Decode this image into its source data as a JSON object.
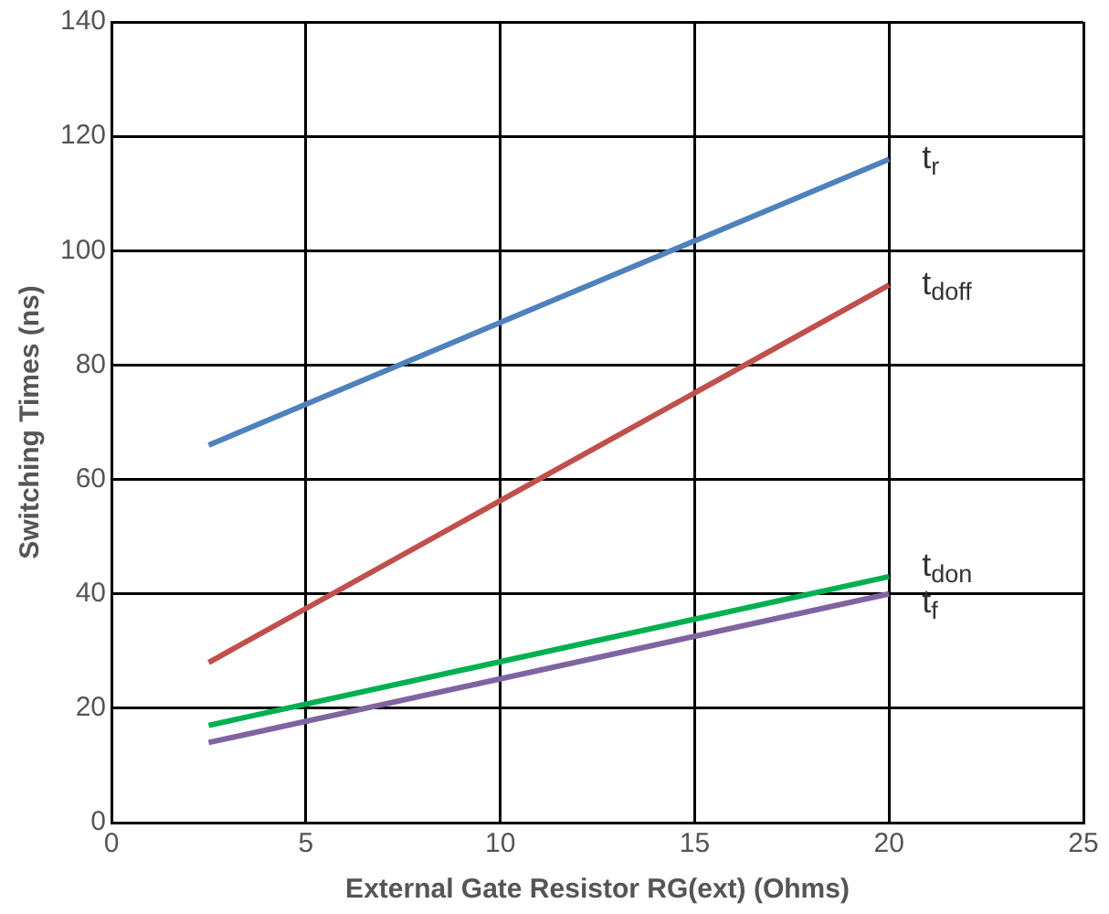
{
  "chart_data": {
    "type": "line",
    "xlabel": "External Gate Resistor RG(ext) (Ohms)",
    "ylabel": "Switching Times (ns)",
    "x": [
      2.5,
      20
    ],
    "series": [
      {
        "name": "t$_{r}$",
        "color": "#4f81bd",
        "values": [
          66,
          116
        ]
      },
      {
        "name": "t$_{doff}$",
        "color": "#c0504d",
        "values": [
          28,
          94
        ]
      },
      {
        "name": "t$_{don}$",
        "color": "#00b050",
        "values": [
          17,
          43
        ]
      },
      {
        "name": "t$_{f}$",
        "color": "#8064a2",
        "values": [
          14,
          40
        ]
      }
    ],
    "xlim": [
      0,
      25
    ],
    "xticks": [
      0,
      5,
      10,
      15,
      20,
      25
    ],
    "ylim": [
      0,
      140
    ],
    "yticks": [
      0,
      20,
      40,
      60,
      80,
      100,
      120,
      140
    ],
    "grid": true,
    "legend": false,
    "marker": "none",
    "line_style": "solid"
  }
}
